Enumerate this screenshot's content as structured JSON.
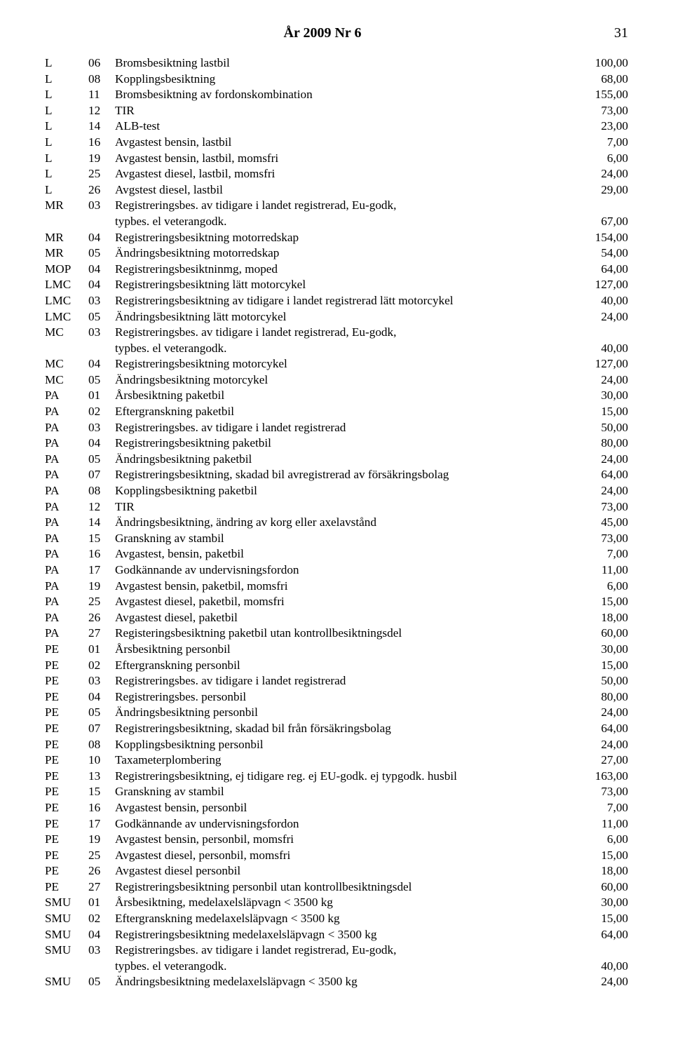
{
  "header": {
    "title": "År 2009 Nr 6",
    "page_no": "31"
  },
  "colors": {
    "text": "#000000",
    "background": "#ffffff"
  },
  "font": {
    "family": "Times New Roman",
    "size_pt": 13
  },
  "rows": [
    {
      "code": "L",
      "num": "06",
      "desc": "Bromsbesiktning lastbil",
      "price": "100,00"
    },
    {
      "code": "L",
      "num": "08",
      "desc": "Kopplingsbesiktning",
      "price": "68,00"
    },
    {
      "code": "L",
      "num": "11",
      "desc": "Bromsbesiktning av fordonskombination",
      "price": "155,00"
    },
    {
      "code": "L",
      "num": "12",
      "desc": "TIR",
      "price": "73,00"
    },
    {
      "code": "L",
      "num": "14",
      "desc": "ALB-test",
      "price": "23,00"
    },
    {
      "code": "L",
      "num": "16",
      "desc": "Avgastest bensin, lastbil",
      "price": "7,00"
    },
    {
      "code": "L",
      "num": "19",
      "desc": "Avgastest bensin, lastbil, momsfri",
      "price": "6,00"
    },
    {
      "code": "L",
      "num": "25",
      "desc": "Avgastest diesel, lastbil, momsfri",
      "price": "24,00"
    },
    {
      "code": "L",
      "num": "26",
      "desc": "Avgstest diesel, lastbil",
      "price": "29,00"
    },
    {
      "code": "MR",
      "num": "03",
      "desc": "Registreringsbes. av tidigare i landet registrerad, Eu-godk,",
      "price": ""
    },
    {
      "code": "",
      "num": "",
      "desc": "typbes. el veterangodk.",
      "price": "67,00",
      "cont": true
    },
    {
      "code": "MR",
      "num": "04",
      "desc": "Registreringsbesiktning motorredskap",
      "price": "154,00"
    },
    {
      "code": "MR",
      "num": "05",
      "desc": "Ändringsbesiktning motorredskap",
      "price": "54,00"
    },
    {
      "code": "MOP",
      "num": "04",
      "desc": "Registreringsbesiktninmg, moped",
      "price": "64,00"
    },
    {
      "code": "LMC",
      "num": "04",
      "desc": "Registreringsbesiktning lätt motorcykel",
      "price": "127,00"
    },
    {
      "code": "LMC",
      "num": "03",
      "desc": "Registreringsbesiktning av tidigare i landet registrerad lätt motorcykel",
      "price": "40,00"
    },
    {
      "code": "LMC",
      "num": "05",
      "desc": "Ändringsbesiktning lätt motorcykel",
      "price": "24,00"
    },
    {
      "code": "MC",
      "num": "03",
      "desc": "Registreringsbes. av tidigare i landet registrerad, Eu-godk,",
      "price": ""
    },
    {
      "code": "",
      "num": "",
      "desc": "typbes. el veterangodk.",
      "price": "40,00",
      "cont": true
    },
    {
      "code": "MC",
      "num": "04",
      "desc": "Registreringsbesiktning motorcykel",
      "price": "127,00"
    },
    {
      "code": "MC",
      "num": "05",
      "desc": "Ändringsbesiktning motorcykel",
      "price": "24,00"
    },
    {
      "code": "PA",
      "num": "01",
      "desc": "Årsbesiktning paketbil",
      "price": "30,00"
    },
    {
      "code": "PA",
      "num": "02",
      "desc": "Eftergranskning paketbil",
      "price": "15,00"
    },
    {
      "code": "PA",
      "num": "03",
      "desc": "Registreringsbes. av tidigare i landet registrerad",
      "price": "50,00"
    },
    {
      "code": "PA",
      "num": "04",
      "desc": "Registreringsbesiktning paketbil",
      "price": "80,00"
    },
    {
      "code": "PA",
      "num": "05",
      "desc": "Ändringsbesiktning paketbil",
      "price": "24,00"
    },
    {
      "code": "PA",
      "num": "07",
      "desc": "Registreringsbesiktning, skadad bil avregistrerad av försäkringsbolag",
      "price": "64,00"
    },
    {
      "code": "PA",
      "num": "08",
      "desc": "Kopplingsbesiktning paketbil",
      "price": "24,00"
    },
    {
      "code": "PA",
      "num": "12",
      "desc": "TIR",
      "price": "73,00"
    },
    {
      "code": "PA",
      "num": "14",
      "desc": "Ändringsbesiktning, ändring av korg eller axelavstånd",
      "price": "45,00"
    },
    {
      "code": "PA",
      "num": "15",
      "desc": "Granskning av stambil",
      "price": "73,00"
    },
    {
      "code": "PA",
      "num": "16",
      "desc": "Avgastest, bensin, paketbil",
      "price": "7,00"
    },
    {
      "code": "PA",
      "num": "17",
      "desc": "Godkännande av undervisningsfordon",
      "price": "11,00"
    },
    {
      "code": "PA",
      "num": "19",
      "desc": "Avgastest bensin, paketbil, momsfri",
      "price": "6,00"
    },
    {
      "code": "PA",
      "num": "25",
      "desc": "Avgastest diesel, paketbil, momsfri",
      "price": "15,00"
    },
    {
      "code": "PA",
      "num": "26",
      "desc": "Avgastest diesel, paketbil",
      "price": "18,00"
    },
    {
      "code": "PA",
      "num": "27",
      "desc": "Registeringsbesiktning paketbil utan kontrollbesiktningsdel",
      "price": "60,00"
    },
    {
      "code": "PE",
      "num": "01",
      "desc": "Årsbesiktning personbil",
      "price": "30,00"
    },
    {
      "code": "PE",
      "num": "02",
      "desc": "Eftergranskning personbil",
      "price": "15,00"
    },
    {
      "code": "PE",
      "num": "03",
      "desc": "Registreringsbes. av tidigare i landet registrerad",
      "price": "50,00"
    },
    {
      "code": "PE",
      "num": "04",
      "desc": "Registreringsbes. personbil",
      "price": "80,00"
    },
    {
      "code": "PE",
      "num": "05",
      "desc": "Ändringsbesiktning personbil",
      "price": "24,00"
    },
    {
      "code": "PE",
      "num": "07",
      "desc": "Registreringsbesiktning, skadad bil från försäkringsbolag",
      "price": "64,00"
    },
    {
      "code": "PE",
      "num": "08",
      "desc": "Kopplingsbesiktning personbil",
      "price": "24,00"
    },
    {
      "code": "PE",
      "num": "10",
      "desc": "Taxameterplombering",
      "price": "27,00"
    },
    {
      "code": "PE",
      "num": "13",
      "desc": "Registreringsbesiktning, ej tidigare reg. ej EU-godk. ej typgodk. husbil",
      "price": "163,00"
    },
    {
      "code": "PE",
      "num": "15",
      "desc": "Granskning av stambil",
      "price": "73,00"
    },
    {
      "code": "PE",
      "num": "16",
      "desc": "Avgastest bensin, personbil",
      "price": "7,00"
    },
    {
      "code": "PE",
      "num": "17",
      "desc": "Godkännande av undervisningsfordon",
      "price": "11,00"
    },
    {
      "code": "PE",
      "num": "19",
      "desc": "Avgastest bensin, personbil, momsfri",
      "price": "6,00"
    },
    {
      "code": "PE",
      "num": "25",
      "desc": "Avgastest diesel, personbil, momsfri",
      "price": "15,00"
    },
    {
      "code": "PE",
      "num": "26",
      "desc": "Avgastest diesel personbil",
      "price": "18,00"
    },
    {
      "code": "PE",
      "num": "27",
      "desc": "Registreringsbesiktning personbil utan kontrollbesiktningsdel",
      "price": "60,00"
    },
    {
      "code": "SMU",
      "num": "01",
      "desc": "Årsbesiktning, medelaxelsläpvagn < 3500 kg",
      "price": "30,00"
    },
    {
      "code": "SMU",
      "num": "02",
      "desc": "Eftergranskning medelaxelsläpvagn < 3500 kg",
      "price": "15,00"
    },
    {
      "code": "SMU",
      "num": "04",
      "desc": "Registreringsbesiktning medelaxelsläpvagn < 3500 kg",
      "price": "64,00"
    },
    {
      "code": "SMU",
      "num": "03",
      "desc": "Registreringsbes. av tidigare i landet registrerad, Eu-godk,",
      "price": ""
    },
    {
      "code": "",
      "num": "",
      "desc": "typbes. el veterangodk.",
      "price": "40,00",
      "cont": true
    },
    {
      "code": "SMU",
      "num": "05",
      "desc": "Ändringsbesiktning medelaxelsläpvagn < 3500 kg",
      "price": "24,00"
    }
  ]
}
